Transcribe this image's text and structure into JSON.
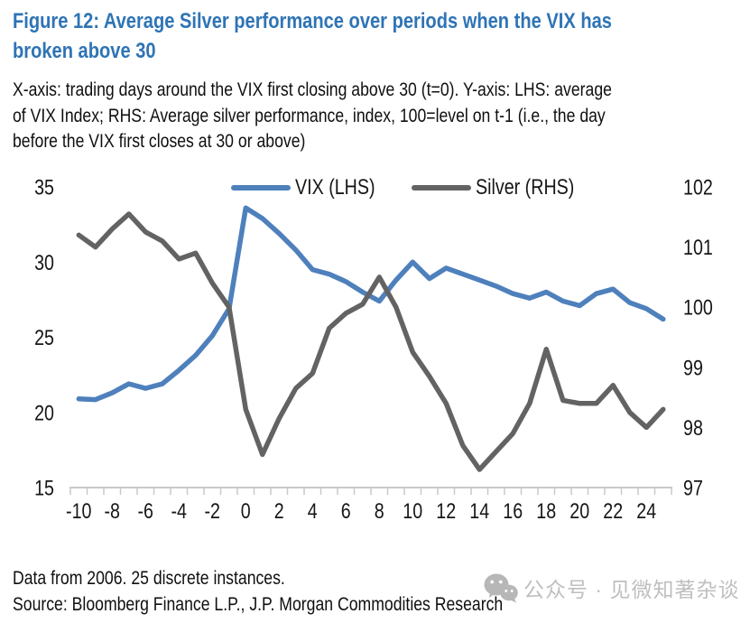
{
  "header": {
    "title_line1": "Figure 12: Average Silver performance over periods when the VIX has",
    "title_line2": "broken above 30",
    "note_line1": "X-axis: trading days around the VIX first closing above 30 (t=0). Y-axis: LHS: average",
    "note_line2": "of VIX Index; RHS: Average silver performance, index, 100=level on t-1 (i.e., the day",
    "note_line3": "before the VIX first closes at 30 or above)"
  },
  "chart_data": {
    "type": "line",
    "title": "Figure 12: Average Silver performance over periods when the VIX has broken above 30",
    "xlabel": "",
    "x": [
      -10,
      -9,
      -8,
      -7,
      -6,
      -5,
      -4,
      -3,
      -2,
      -1,
      0,
      1,
      2,
      3,
      4,
      5,
      6,
      7,
      8,
      9,
      10,
      11,
      12,
      13,
      14,
      15,
      16,
      17,
      18,
      19,
      20,
      21,
      22,
      23,
      24,
      25
    ],
    "x_tick_labels": [
      -10,
      -8,
      -6,
      -4,
      -2,
      0,
      2,
      4,
      6,
      8,
      10,
      12,
      14,
      16,
      18,
      20,
      22,
      24
    ],
    "left_axis": {
      "min": 15,
      "max": 35,
      "ticks": [
        35,
        30,
        25,
        20,
        15
      ]
    },
    "right_axis": {
      "min": 97,
      "max": 102,
      "ticks": [
        102,
        101,
        100,
        99,
        98,
        97
      ]
    },
    "grid": false,
    "legend_position": "top",
    "series": [
      {
        "name": "VIX (LHS)",
        "axis": "left",
        "color": "#4e80bc",
        "values": [
          20.9,
          20.85,
          21.3,
          21.9,
          21.6,
          21.9,
          22.8,
          23.8,
          25.1,
          26.9,
          33.6,
          32.9,
          31.9,
          30.8,
          29.5,
          29.2,
          28.7,
          28.0,
          27.4,
          28.8,
          30.0,
          28.9,
          29.6,
          29.2,
          28.8,
          28.4,
          27.9,
          27.6,
          28.0,
          27.4,
          27.1,
          27.9,
          28.2,
          27.3,
          26.9,
          26.2
        ]
      },
      {
        "name": "Silver (RHS)",
        "axis": "right",
        "color": "#636363",
        "values": [
          101.2,
          101.0,
          101.3,
          101.55,
          101.25,
          101.1,
          100.8,
          100.9,
          100.4,
          100.0,
          98.3,
          97.55,
          98.15,
          98.65,
          98.9,
          99.65,
          99.9,
          100.05,
          100.5,
          100.0,
          99.25,
          98.85,
          98.4,
          97.7,
          97.3,
          97.6,
          97.9,
          98.4,
          99.3,
          98.45,
          98.4,
          98.4,
          98.7,
          98.25,
          98.0,
          98.3
        ]
      }
    ]
  },
  "footer": {
    "line1": "Data from 2006. 25 discrete instances.",
    "line2": "Source: Bloomberg Finance L.P., J.P. Morgan Commodities Research"
  },
  "watermark": {
    "icon": "wechat-icon",
    "text": "公众号 · 见微知著杂谈"
  },
  "colors": {
    "title": "#2e74b5",
    "vix_line": "#4e80bc",
    "silver_line": "#636363",
    "axis": "#c9c9c9",
    "text": "#161616",
    "watermark": "#b7b7b7"
  }
}
